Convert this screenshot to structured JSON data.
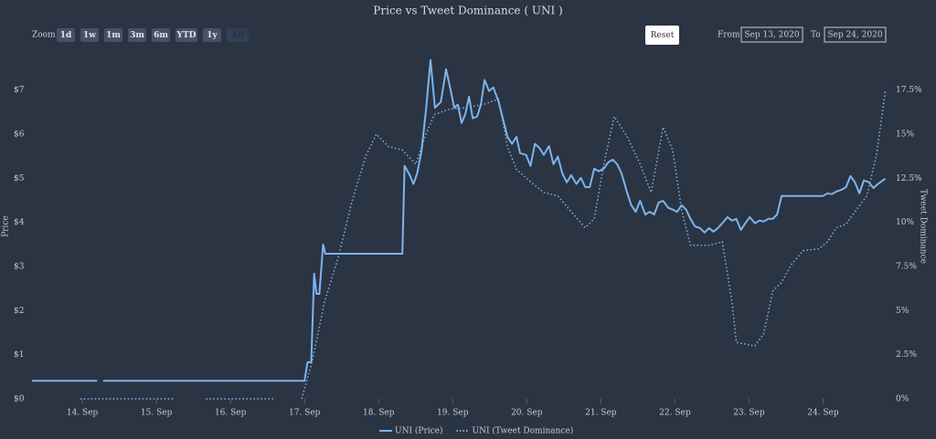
{
  "controls": {
    "zoom_label": "Zoom",
    "buttons": [
      "1d",
      "1w",
      "1m",
      "3m",
      "6m",
      "YTD",
      "1y",
      "All"
    ],
    "selected": "All",
    "reset": "Reset",
    "from_label": "From",
    "from": "Sep 13, 2020",
    "to_label": "To",
    "to": "Sep 24, 2020"
  },
  "chart_data": {
    "type": "line",
    "title": "Price vs Tweet Dominance ( UNI )",
    "y_label": "Price",
    "y2_label": "Tweet Dominance",
    "grid": false,
    "legend": "bottom",
    "xlim": [
      13.32,
      24.92
    ],
    "xticks": [
      {
        "value": 14,
        "label": "14. Sep"
      },
      {
        "value": 15,
        "label": "15. Sep"
      },
      {
        "value": 16,
        "label": "16. Sep"
      },
      {
        "value": 17,
        "label": "17. Sep"
      },
      {
        "value": 18,
        "label": "18. Sep"
      },
      {
        "value": 19,
        "label": "19. Sep"
      },
      {
        "value": 20,
        "label": "20. Sep"
      },
      {
        "value": 21,
        "label": "21. Sep"
      },
      {
        "value": 22,
        "label": "22. Sep"
      },
      {
        "value": 23,
        "label": "23. Sep"
      },
      {
        "value": 24,
        "label": "24. Sep"
      }
    ],
    "ylim": [
      0,
      7.8
    ],
    "yticks": [
      {
        "value": 0,
        "label": "$0"
      },
      {
        "value": 1,
        "label": "$1"
      },
      {
        "value": 2,
        "label": "$2"
      },
      {
        "value": 3,
        "label": "$3"
      },
      {
        "value": 4,
        "label": "$4"
      },
      {
        "value": 5,
        "label": "$5"
      },
      {
        "value": 6,
        "label": "$6"
      },
      {
        "value": 7,
        "label": "$7"
      }
    ],
    "y2lim": [
      0,
      19.5
    ],
    "y2ticks": [
      {
        "value": 0,
        "label": "0%"
      },
      {
        "value": 2.5,
        "label": "2.5%"
      },
      {
        "value": 5,
        "label": "5%"
      },
      {
        "value": 7.5,
        "label": "7.5%"
      },
      {
        "value": 10,
        "label": "10%"
      },
      {
        "value": 12.5,
        "label": "12.5%"
      },
      {
        "value": 15,
        "label": "15%"
      },
      {
        "value": 17.5,
        "label": "17.5%"
      }
    ],
    "series": [
      {
        "name": "UNI (Price)",
        "color": "#7cb5ec",
        "dash": "solid",
        "axis": "y",
        "x": [
          13.32,
          14.2,
          14.25,
          14.28,
          17.0,
          17.04,
          17.09,
          17.13,
          17.16,
          17.2,
          17.25,
          17.28,
          18.32,
          18.35,
          18.42,
          18.47,
          18.52,
          18.58,
          18.64,
          18.7,
          18.76,
          18.84,
          18.91,
          18.97,
          19.02,
          19.07,
          19.12,
          19.17,
          19.22,
          19.27,
          19.33,
          19.38,
          19.43,
          19.49,
          19.55,
          19.62,
          19.67,
          19.74,
          19.8,
          19.86,
          19.91,
          19.99,
          20.05,
          20.11,
          20.17,
          20.23,
          20.3,
          20.36,
          20.42,
          20.48,
          20.54,
          20.6,
          20.67,
          20.73,
          20.79,
          20.85,
          20.91,
          20.97,
          21.04,
          21.1,
          21.16,
          21.22,
          21.28,
          21.35,
          21.41,
          21.47,
          21.53,
          21.6,
          21.66,
          21.72,
          21.78,
          21.84,
          21.91,
          21.97,
          22.03,
          22.09,
          22.15,
          22.21,
          22.27,
          22.34,
          22.4,
          22.46,
          22.52,
          22.58,
          22.64,
          22.71,
          22.77,
          22.83,
          22.89,
          22.95,
          23.01,
          23.08,
          23.14,
          23.2,
          23.26,
          23.32,
          23.38,
          23.44,
          24.0,
          24.06,
          24.12,
          24.18,
          24.25,
          24.31,
          24.37,
          24.43,
          24.49,
          24.55,
          24.62,
          24.68,
          24.74,
          24.84
        ],
        "values": [
          0.41,
          0.41,
          null,
          0.41,
          0.41,
          0.83,
          0.83,
          2.84,
          2.38,
          2.38,
          3.5,
          3.29,
          3.29,
          5.28,
          5.07,
          4.87,
          5.11,
          5.63,
          6.56,
          7.68,
          6.6,
          6.73,
          7.47,
          7.02,
          6.6,
          6.67,
          6.25,
          6.46,
          6.85,
          6.36,
          6.4,
          6.67,
          7.23,
          6.98,
          7.06,
          6.73,
          6.4,
          5.94,
          5.78,
          5.94,
          5.57,
          5.53,
          5.28,
          5.78,
          5.69,
          5.53,
          5.73,
          5.32,
          5.49,
          5.11,
          4.91,
          5.07,
          4.87,
          5.01,
          4.8,
          4.8,
          5.22,
          5.16,
          5.22,
          5.36,
          5.42,
          5.32,
          5.11,
          4.7,
          4.39,
          4.24,
          4.49,
          4.18,
          4.24,
          4.18,
          4.45,
          4.49,
          4.33,
          4.29,
          4.24,
          4.39,
          4.29,
          4.08,
          3.91,
          3.87,
          3.77,
          3.87,
          3.79,
          3.87,
          3.98,
          4.12,
          4.04,
          4.08,
          3.83,
          3.98,
          4.12,
          3.98,
          4.04,
          4.02,
          4.08,
          4.08,
          4.18,
          4.6,
          4.6,
          4.66,
          4.64,
          4.7,
          4.74,
          4.8,
          5.05,
          4.91,
          4.66,
          4.95,
          4.91,
          4.78,
          4.87,
          4.99
        ]
      },
      {
        "name": "UNI (Tweet Dominance)",
        "color": "#7cb5ec",
        "dash": "dot",
        "axis": "y2",
        "x": [
          13.97,
          15.23,
          15.45,
          15.67,
          16.59,
          16.8,
          16.96,
          17.09,
          17.27,
          17.46,
          17.64,
          17.83,
          17.97,
          18.13,
          18.32,
          18.5,
          18.63,
          18.75,
          18.94,
          19.18,
          19.43,
          19.62,
          19.74,
          19.86,
          20.05,
          20.23,
          20.42,
          20.6,
          20.79,
          20.91,
          21.04,
          21.18,
          21.35,
          21.53,
          21.68,
          21.84,
          21.97,
          22.09,
          22.21,
          22.46,
          22.64,
          22.77,
          22.83,
          23.08,
          23.2,
          23.32,
          23.44,
          23.57,
          23.73,
          23.94,
          24.06,
          24.18,
          24.31,
          24.43,
          24.59,
          24.72,
          24.84
        ],
        "values": [
          0,
          0,
          null,
          0,
          0,
          null,
          0,
          1.9,
          5.5,
          8.1,
          11.2,
          13.8,
          15.0,
          14.3,
          14.1,
          13.3,
          14.9,
          16.1,
          16.4,
          16.5,
          16.7,
          17.0,
          14.3,
          13.0,
          12.3,
          11.7,
          11.5,
          10.6,
          9.7,
          10.2,
          13.3,
          16.0,
          14.9,
          13.3,
          11.7,
          15.4,
          14.1,
          10.7,
          8.7,
          8.7,
          8.9,
          5.5,
          3.2,
          3.0,
          3.7,
          6.1,
          6.6,
          7.6,
          8.4,
          8.5,
          8.9,
          9.7,
          9.9,
          10.6,
          11.5,
          13.8,
          17.4
        ]
      }
    ]
  }
}
